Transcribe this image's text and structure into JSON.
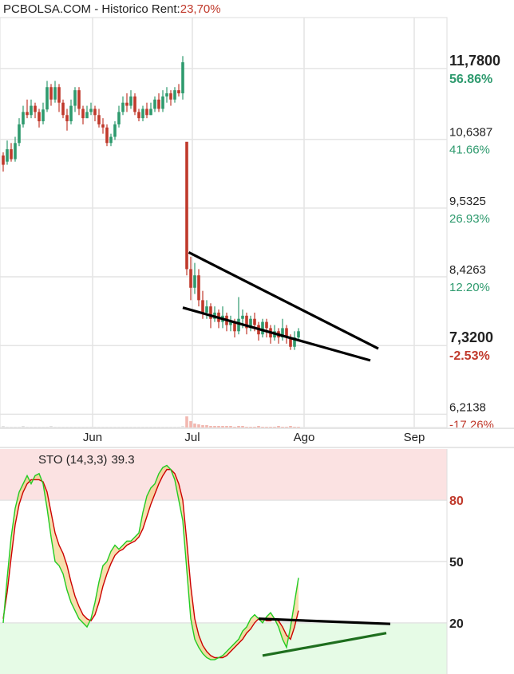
{
  "header": {
    "title": "PCBOLSA.COM - Historico",
    "rent_label": "Rent:",
    "rent_value": "23,70%"
  },
  "colors": {
    "up": "#2e9a6e",
    "down": "#c0392b",
    "grid": "#e4e4e4",
    "axis_text": "#222222",
    "pct_positive": "#2e9a6e",
    "pct_negative": "#c0392b",
    "overbought_zone": "#fbe2e2",
    "oversold_zone": "#e6fbe6",
    "stoch_fast": "#22cc22",
    "stoch_slow": "#cc0000",
    "trendline": "#000000",
    "stoch_support_line": "#1e6e1e"
  },
  "chart_data": [
    {
      "type": "candlestick",
      "title": "PCBOLSA.COM - Historico",
      "x_tick_labels": [
        "Jun",
        "Jul",
        "Ago",
        "Sep"
      ],
      "y_ticks": [
        {
          "price": "11,7800",
          "pct": "56.86%",
          "sign": "pos",
          "bold": true
        },
        {
          "price": "10,6387",
          "pct": "41.66%",
          "sign": "pos",
          "bold": false
        },
        {
          "price": "9,5325",
          "pct": "26.93%",
          "sign": "pos",
          "bold": false
        },
        {
          "price": "8,4263",
          "pct": "12.20%",
          "sign": "pos",
          "bold": false
        },
        {
          "price": "7,3200",
          "pct": "-2.53%",
          "sign": "neg",
          "bold": true
        },
        {
          "price": "6,2138",
          "pct": "-17.26%",
          "sign": "neg",
          "bold": false
        }
      ],
      "ylim": [
        6.0,
        12.6
      ],
      "candles": [
        [
          10.38,
          10.23,
          10.43,
          10.12
        ],
        [
          10.28,
          10.48,
          10.62,
          10.23
        ],
        [
          10.48,
          10.32,
          10.58,
          10.28
        ],
        [
          10.32,
          10.58,
          10.68,
          10.28
        ],
        [
          10.58,
          10.88,
          10.98,
          10.53
        ],
        [
          10.88,
          11.08,
          11.18,
          10.83
        ],
        [
          11.08,
          11.03,
          11.28,
          10.98
        ],
        [
          11.03,
          11.18,
          11.28,
          10.98
        ],
        [
          11.18,
          11.08,
          11.23,
          10.98
        ],
        [
          11.08,
          10.93,
          11.13,
          10.83
        ],
        [
          10.93,
          11.12,
          11.23,
          10.88
        ],
        [
          11.12,
          11.48,
          11.58,
          11.08
        ],
        [
          11.48,
          11.28,
          11.53,
          11.18
        ],
        [
          11.28,
          11.48,
          11.58,
          11.23
        ],
        [
          11.48,
          11.23,
          11.53,
          11.08
        ],
        [
          11.23,
          11.03,
          11.28,
          10.98
        ],
        [
          11.03,
          10.93,
          11.13,
          10.78
        ],
        [
          10.93,
          11.18,
          11.28,
          10.88
        ],
        [
          11.18,
          11.43,
          11.48,
          11.08
        ],
        [
          11.43,
          11.13,
          11.48,
          11.03
        ],
        [
          11.13,
          10.98,
          11.18,
          10.88
        ],
        [
          10.98,
          11.08,
          11.18,
          10.98
        ],
        [
          11.08,
          11.13,
          11.23,
          11.03
        ],
        [
          11.13,
          11.03,
          11.18,
          10.93
        ],
        [
          11.03,
          10.88,
          11.13,
          10.83
        ],
        [
          10.88,
          10.83,
          10.98,
          10.73
        ],
        [
          10.83,
          10.58,
          10.88,
          10.53
        ],
        [
          10.58,
          10.68,
          10.73,
          10.53
        ],
        [
          10.68,
          10.88,
          10.93,
          10.63
        ],
        [
          10.88,
          11.08,
          11.18,
          10.83
        ],
        [
          11.08,
          11.23,
          11.33,
          11.03
        ],
        [
          11.23,
          11.18,
          11.38,
          11.08
        ],
        [
          11.18,
          11.33,
          11.43,
          11.13
        ],
        [
          11.33,
          11.08,
          11.38,
          11.03
        ],
        [
          11.08,
          10.98,
          11.13,
          10.93
        ],
        [
          10.98,
          11.13,
          11.18,
          10.93
        ],
        [
          11.13,
          11.03,
          11.23,
          10.98
        ],
        [
          11.03,
          11.13,
          11.23,
          11.03
        ],
        [
          11.13,
          11.28,
          11.33,
          11.08
        ],
        [
          11.28,
          11.13,
          11.38,
          11.08
        ],
        [
          11.13,
          11.33,
          11.43,
          11.08
        ],
        [
          11.33,
          11.38,
          11.48,
          11.23
        ],
        [
          11.38,
          11.28,
          11.43,
          11.18
        ],
        [
          11.28,
          11.43,
          11.48,
          11.23
        ],
        [
          11.43,
          11.38,
          11.53,
          11.33
        ],
        [
          11.38,
          11.88,
          11.98,
          11.28
        ],
        [
          10.6,
          8.55,
          10.55,
          8.45
        ],
        [
          8.55,
          8.25,
          8.75,
          8.05
        ],
        [
          8.25,
          8.45,
          8.65,
          8.15
        ],
        [
          8.45,
          8.05,
          8.55,
          7.95
        ],
        [
          8.05,
          7.85,
          8.2,
          7.75
        ],
        [
          7.85,
          7.95,
          8.05,
          7.75
        ],
        [
          7.95,
          7.75,
          8.0,
          7.6
        ],
        [
          7.75,
          7.85,
          7.95,
          7.7
        ],
        [
          7.85,
          7.7,
          7.9,
          7.6
        ],
        [
          7.7,
          7.8,
          7.95,
          7.6
        ],
        [
          7.8,
          7.65,
          7.85,
          7.55
        ],
        [
          7.65,
          7.7,
          7.8,
          7.55
        ],
        [
          7.7,
          7.55,
          7.75,
          7.45
        ],
        [
          7.55,
          7.75,
          8.1,
          7.5
        ],
        [
          7.75,
          7.8,
          7.9,
          7.6
        ],
        [
          7.8,
          7.6,
          7.85,
          7.5
        ],
        [
          7.6,
          7.75,
          7.8,
          7.55
        ],
        [
          7.75,
          7.65,
          7.85,
          7.55
        ],
        [
          7.65,
          7.5,
          7.7,
          7.4
        ],
        [
          7.5,
          7.7,
          7.75,
          7.45
        ],
        [
          7.7,
          7.6,
          7.75,
          7.45
        ],
        [
          7.6,
          7.45,
          7.65,
          7.35
        ],
        [
          7.45,
          7.55,
          7.65,
          7.4
        ],
        [
          7.55,
          7.45,
          7.6,
          7.35
        ],
        [
          7.45,
          7.6,
          7.75,
          7.4
        ],
        [
          7.6,
          7.45,
          7.65,
          7.35
        ],
        [
          7.45,
          7.3,
          7.5,
          7.25
        ],
        [
          7.3,
          7.45,
          7.55,
          7.25
        ],
        [
          7.45,
          7.55,
          7.6,
          7.4
        ]
      ],
      "volume": [
        2,
        1,
        1,
        1,
        1,
        2,
        1,
        1,
        1,
        1,
        1,
        1,
        2,
        1,
        1,
        1,
        1,
        1,
        1,
        1,
        1,
        1,
        1,
        1,
        1,
        1,
        1,
        1,
        1,
        1,
        1,
        1,
        1,
        1,
        1,
        1,
        1,
        1,
        1,
        1,
        1,
        1,
        1,
        1,
        1,
        2,
        14,
        8,
        5,
        4,
        3,
        3,
        2,
        2,
        2,
        2,
        2,
        2,
        1,
        2,
        2,
        1,
        1,
        1,
        2,
        1,
        1,
        1,
        1,
        2,
        1,
        1,
        2,
        1,
        1
      ],
      "trendlines": [
        {
          "from": [
            0,
            8.82
          ],
          "to": [
            0,
            7.27
          ],
          "from_idx": 46.5,
          "to_idx": 94
        },
        {
          "from": [
            0,
            7.93
          ],
          "to": [
            0,
            7.08
          ],
          "from_idx": 45,
          "to_idx": 92
        }
      ]
    },
    {
      "type": "line",
      "title": "STO (14,3,3) 39.3",
      "indicator_label": "STO (14,3,3)",
      "indicator_value": "39.3",
      "y_ticks": [
        "80",
        "50",
        "20"
      ],
      "ylim": [
        -5,
        105
      ],
      "overbought_level": 80,
      "oversold_level": 20,
      "series": [
        {
          "key": "fast",
          "values": [
            20,
            42,
            62,
            76,
            84,
            88,
            92,
            88,
            92,
            93,
            88,
            76,
            62,
            50,
            48,
            44,
            36,
            30,
            26,
            22,
            20,
            18,
            22,
            30,
            40,
            48,
            50,
            55,
            58,
            56,
            58,
            60,
            60,
            62,
            64,
            74,
            82,
            86,
            88,
            93,
            96,
            97,
            95,
            90,
            80,
            70,
            46,
            22,
            12,
            8,
            5,
            3,
            2,
            2,
            3,
            4,
            6,
            8,
            10,
            12,
            16,
            18,
            22,
            24,
            22,
            20,
            23,
            25,
            22,
            18,
            12,
            8,
            18,
            30,
            42
          ]
        },
        {
          "key": "slow",
          "values": [
            22,
            35,
            52,
            68,
            78,
            84,
            88,
            90,
            90,
            90,
            89,
            84,
            74,
            64,
            58,
            54,
            48,
            40,
            33,
            28,
            24,
            22,
            21,
            24,
            30,
            38,
            44,
            49,
            53,
            55,
            56,
            58,
            59,
            60,
            62,
            66,
            72,
            78,
            83,
            88,
            92,
            95,
            95,
            93,
            88,
            80,
            60,
            38,
            22,
            14,
            9,
            6,
            4,
            3,
            3,
            3,
            4,
            6,
            8,
            10,
            12,
            15,
            17,
            20,
            22,
            22,
            21,
            21,
            22,
            21,
            18,
            14,
            12,
            18,
            26
          ]
        }
      ],
      "trendlines": [
        {
          "from_idx": 64,
          "from_value": 22,
          "to_idx": 97,
          "to_value": 19.5
        },
        {
          "from_idx": 65,
          "from_value": 4,
          "to_idx": 96,
          "to_value": 15
        }
      ]
    }
  ]
}
